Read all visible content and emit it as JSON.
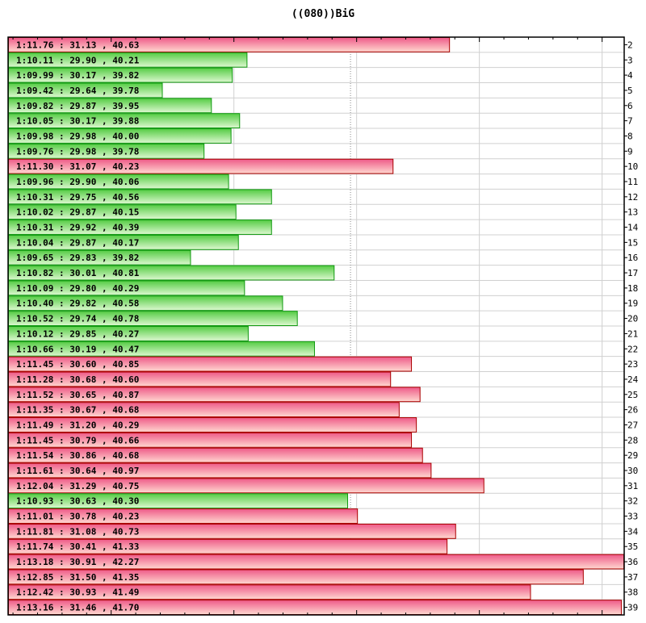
{
  "chart_data": {
    "type": "bar",
    "orientation": "horizontal",
    "title": "((080))BiG",
    "xlabel": "",
    "ylabel": "",
    "x_unit": "seconds",
    "xlim": [
      68.16,
      73.18
    ],
    "grid": true,
    "reference_line": 70.95,
    "colors": {
      "below_reference": "#33bb33",
      "above_reference": "#ee5577",
      "below_border": "#119911",
      "above_border": "#aa0000"
    },
    "categories": [
      "2",
      "3",
      "4",
      "5",
      "6",
      "7",
      "8",
      "9",
      "10",
      "11",
      "12",
      "13",
      "14",
      "15",
      "16",
      "17",
      "18",
      "19",
      "20",
      "21",
      "22",
      "23",
      "24",
      "25",
      "26",
      "27",
      "28",
      "29",
      "30",
      "31",
      "32",
      "33",
      "34",
      "35",
      "36",
      "37",
      "38",
      "39"
    ],
    "labels": [
      "1:11.76  :  31.13 , 40.63",
      "1:10.11  :  29.90 , 40.21",
      "1:09.99  :  30.17 , 39.82",
      "1:09.42  :  29.64 , 39.78",
      "1:09.82  :  29.87 , 39.95",
      "1:10.05  :  30.17 , 39.88",
      "1:09.98  :  29.98 , 40.00",
      "1:09.76  :  29.98 , 39.78",
      "1:11.30  :  31.07 , 40.23",
      "1:09.96  :  29.90 , 40.06",
      "1:10.31  :  29.75 , 40.56",
      "1:10.02  :  29.87 , 40.15",
      "1:10.31  :  29.92 , 40.39",
      "1:10.04  :  29.87 , 40.17",
      "1:09.65  :  29.83 , 39.82",
      "1:10.82  :  30.01 , 40.81",
      "1:10.09  :  29.80 , 40.29",
      "1:10.40  :  29.82 , 40.58",
      "1:10.52  :  29.74 , 40.78",
      "1:10.12  :  29.85 , 40.27",
      "1:10.66  :  30.19 , 40.47",
      "1:11.45  :  30.60 , 40.85",
      "1:11.28  :  30.68 , 40.60",
      "1:11.52  :  30.65 , 40.87",
      "1:11.35  :  30.67 , 40.68",
      "1:11.49  :  31.20 , 40.29",
      "1:11.45  :  30.79 , 40.66",
      "1:11.54  :  30.86 , 40.68",
      "1:11.61  :  30.64 , 40.97",
      "1:12.04  :  31.29 , 40.75",
      "1:10.93  :  30.63 , 40.30",
      "1:11.01  :  30.78 , 40.23",
      "1:11.81  :  31.08 , 40.73",
      "1:11.74  :  30.41 , 41.33",
      "1:13.18  :  30.91 , 42.27",
      "1:12.85  :  31.50 , 41.35",
      "1:12.42  :  30.93 , 41.49",
      "1:13.16  :  31.46 , 41.70"
    ],
    "values": [
      71.76,
      70.11,
      69.99,
      69.42,
      69.82,
      70.05,
      69.98,
      69.76,
      71.3,
      69.96,
      70.31,
      70.02,
      70.31,
      70.04,
      69.65,
      70.82,
      70.09,
      70.4,
      70.52,
      70.12,
      70.66,
      71.45,
      71.28,
      71.52,
      71.35,
      71.49,
      71.45,
      71.54,
      71.61,
      72.04,
      70.93,
      71.01,
      71.81,
      71.74,
      73.18,
      72.85,
      72.42,
      73.16
    ]
  }
}
